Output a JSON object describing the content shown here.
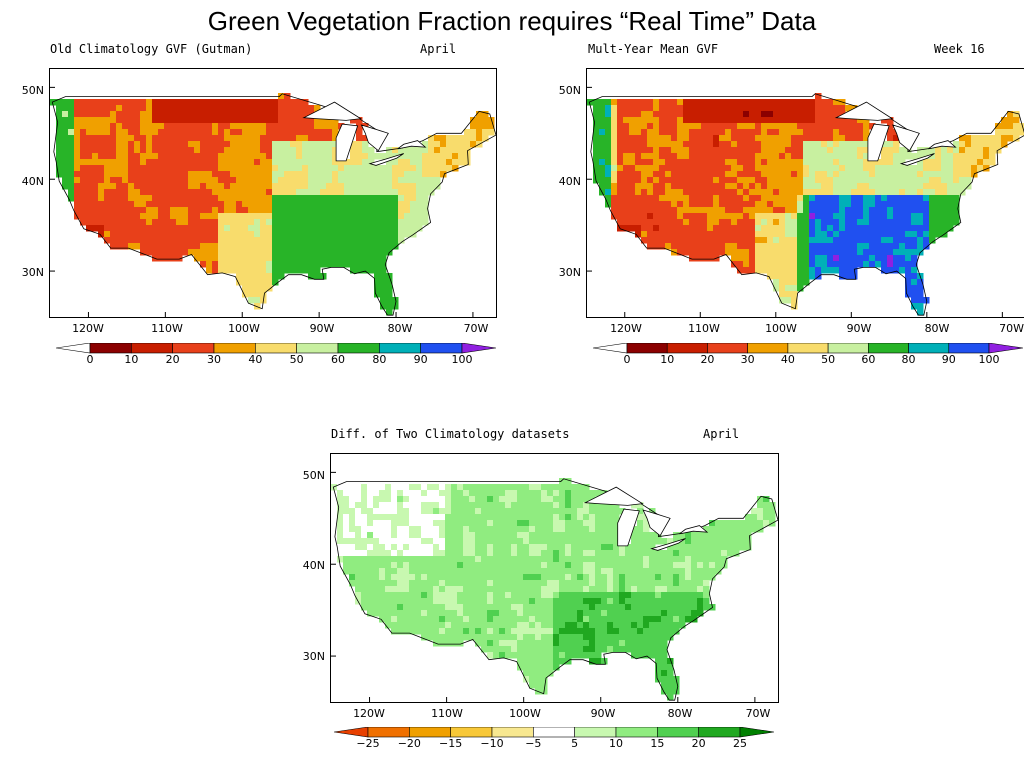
{
  "title": "Green Vegetation Fraction requires “Real Time” Data",
  "panels": [
    {
      "id": "old",
      "left_title": "Old Climatology GVF (Gutman)",
      "right_title": "April",
      "lat_labels": [
        "50N",
        "40N",
        "30N"
      ],
      "lon_labels": [
        "120W",
        "110W",
        "100W",
        "90W",
        "80W",
        "70W"
      ],
      "colorbar": {
        "labels": [
          "0",
          "10",
          "20",
          "30",
          "40",
          "50",
          "60",
          "80",
          "90",
          "100"
        ],
        "colors": [
          "#ffffff",
          "#8b0000",
          "#c81e00",
          "#e8401a",
          "#f0a000",
          "#f8dc6c",
          "#c8f0a0",
          "#28b428",
          "#00b0b8",
          "#2050f0",
          "#9020e0"
        ]
      }
    },
    {
      "id": "new",
      "left_title": "Mult-Year Mean GVF",
      "right_title": "Week 16",
      "lat_labels": [
        "50N",
        "40N",
        "30N"
      ],
      "lon_labels": [
        "120W",
        "110W",
        "100W",
        "90W",
        "80W",
        "70W"
      ],
      "colorbar": {
        "labels": [
          "0",
          "10",
          "20",
          "30",
          "40",
          "50",
          "60",
          "80",
          "90",
          "100"
        ],
        "colors": [
          "#ffffff",
          "#8b0000",
          "#c81e00",
          "#e8401a",
          "#f0a000",
          "#f8dc6c",
          "#c8f0a0",
          "#28b428",
          "#00b0b8",
          "#2050f0",
          "#9020e0"
        ]
      }
    },
    {
      "id": "diff",
      "left_title": "Diff. of Two Climatology datasets",
      "right_title": "April",
      "lat_labels": [
        "50N",
        "40N",
        "30N"
      ],
      "lon_labels": [
        "120W",
        "110W",
        "100W",
        "90W",
        "80W",
        "70W"
      ],
      "colorbar": {
        "labels": [
          "−25",
          "−20",
          "−15",
          "−10",
          "−5",
          "5",
          "10",
          "15",
          "20",
          "25"
        ],
        "colors": [
          "#e84000",
          "#f07000",
          "#f0a000",
          "#f8c838",
          "#f8e890",
          "#ffffff",
          "#c8f8b0",
          "#90ec80",
          "#50d050",
          "#20a820",
          "#008000"
        ]
      }
    }
  ],
  "colors": {
    "water": "#ffffff",
    "coast": "#000000",
    "land_blank": "#ffffff"
  }
}
